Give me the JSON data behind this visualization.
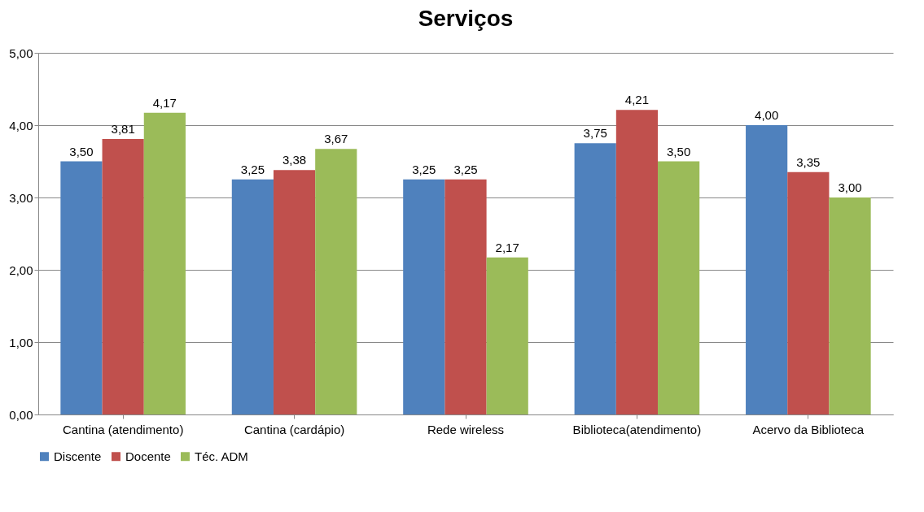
{
  "chart_data": {
    "type": "bar",
    "title": "Serviços",
    "categories": [
      "Cantina (atendimento)",
      "Cantina (cardápio)",
      "Rede wireless",
      "Biblioteca(atendimento)",
      "Acervo da Biblioteca"
    ],
    "series": [
      {
        "name": "Discente",
        "color": "#4f81bd",
        "values": [
          3.5,
          3.25,
          3.25,
          3.75,
          4.0
        ],
        "value_labels": [
          "3,50",
          "3,25",
          "3,25",
          "3,75",
          "4,00"
        ]
      },
      {
        "name": "Docente",
        "color": "#c0504d",
        "values": [
          3.81,
          3.38,
          3.25,
          4.21,
          3.35
        ],
        "value_labels": [
          "3,81",
          "3,38",
          "3,25",
          "4,21",
          "3,35"
        ]
      },
      {
        "name": "Téc. ADM",
        "color": "#9bbb59",
        "values": [
          4.17,
          3.67,
          2.17,
          3.5,
          3.0
        ],
        "value_labels": [
          "4,17",
          "3,67",
          "2,17",
          "3,50",
          "3,00"
        ]
      }
    ],
    "ylim": [
      0,
      5
    ],
    "yticks": [
      {
        "value": 0,
        "label": "0,00"
      },
      {
        "value": 1,
        "label": "1,00"
      },
      {
        "value": 2,
        "label": "2,00"
      },
      {
        "value": 3,
        "label": "3,00"
      },
      {
        "value": 4,
        "label": "4,00"
      },
      {
        "value": 5,
        "label": "5,00"
      }
    ],
    "grid": "y",
    "legend": "bottom"
  }
}
